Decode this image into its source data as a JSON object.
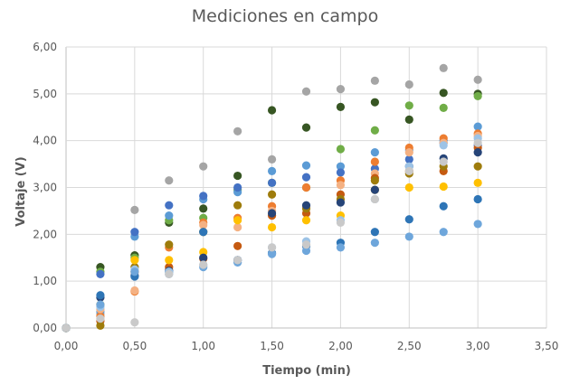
{
  "chart_data": {
    "type": "scatter",
    "title": "Mediciones en campo",
    "xlabel": "Tiempo (min)",
    "ylabel": "Voltaje (V)",
    "xlim": [
      0,
      3.5
    ],
    "ylim": [
      0,
      6
    ],
    "x_ticks": [
      "0,00",
      "0,50",
      "1,00",
      "1,50",
      "2,00",
      "2,50",
      "3,00",
      "3,50"
    ],
    "y_ticks": [
      "0,00",
      "1,00",
      "2,00",
      "3,00",
      "4,00",
      "5,00",
      "6,00"
    ],
    "grid": true,
    "legend": "none",
    "series": [
      {
        "color": "#a5a5a5",
        "points": [
          [
            0,
            0
          ],
          [
            0.25,
            0.3
          ],
          [
            0.5,
            2.52
          ],
          [
            0.75,
            3.15
          ],
          [
            1.0,
            3.45
          ],
          [
            1.25,
            4.2
          ],
          [
            1.5,
            3.6
          ],
          [
            1.75,
            5.05
          ],
          [
            2.0,
            5.1
          ],
          [
            2.25,
            5.28
          ],
          [
            2.5,
            5.2
          ],
          [
            2.75,
            5.55
          ],
          [
            3.0,
            5.3
          ]
        ]
      },
      {
        "color": "#375623",
        "points": [
          [
            0,
            0
          ],
          [
            0.25,
            1.3
          ],
          [
            0.5,
            1.55
          ],
          [
            0.75,
            2.25
          ],
          [
            1.0,
            2.55
          ],
          [
            1.25,
            3.25
          ],
          [
            1.5,
            4.65
          ],
          [
            1.75,
            4.28
          ],
          [
            2.0,
            4.72
          ],
          [
            2.25,
            4.82
          ],
          [
            2.5,
            4.45
          ],
          [
            2.75,
            5.02
          ],
          [
            3.0,
            5.0
          ]
        ]
      },
      {
        "color": "#70ad47",
        "points": [
          [
            0,
            0
          ],
          [
            0.25,
            1.2
          ],
          [
            0.5,
            1.5
          ],
          [
            0.75,
            2.3
          ],
          [
            1.0,
            2.35
          ],
          [
            1.25,
            2.95
          ],
          [
            1.5,
            3.1
          ],
          [
            1.75,
            3.0
          ],
          [
            2.0,
            3.82
          ],
          [
            2.25,
            4.22
          ],
          [
            2.5,
            4.75
          ],
          [
            2.75,
            4.7
          ],
          [
            3.0,
            4.95
          ]
        ]
      },
      {
        "color": "#5b9bd5",
        "points": [
          [
            0,
            0
          ],
          [
            0.25,
            0.35
          ],
          [
            0.5,
            1.95
          ],
          [
            0.75,
            2.4
          ],
          [
            1.0,
            2.75
          ],
          [
            1.25,
            2.9
          ],
          [
            1.5,
            3.35
          ],
          [
            1.75,
            3.47
          ],
          [
            2.0,
            3.45
          ],
          [
            2.25,
            3.75
          ],
          [
            2.5,
            3.8
          ],
          [
            2.75,
            4.0
          ],
          [
            3.0,
            4.3
          ]
        ]
      },
      {
        "color": "#4472c4",
        "points": [
          [
            0,
            0
          ],
          [
            0.25,
            1.15
          ],
          [
            0.5,
            2.05
          ],
          [
            0.75,
            2.62
          ],
          [
            1.0,
            2.82
          ],
          [
            1.25,
            3.0
          ],
          [
            1.5,
            3.1
          ],
          [
            1.75,
            3.22
          ],
          [
            2.0,
            3.32
          ],
          [
            2.25,
            3.4
          ],
          [
            2.5,
            3.6
          ],
          [
            2.75,
            3.95
          ],
          [
            3.0,
            3.9
          ]
        ]
      },
      {
        "color": "#ed7d31",
        "points": [
          [
            0,
            0
          ],
          [
            0.25,
            0.25
          ],
          [
            0.5,
            0.78
          ],
          [
            0.75,
            1.72
          ],
          [
            1.0,
            2.25
          ],
          [
            1.25,
            2.35
          ],
          [
            1.5,
            2.6
          ],
          [
            1.75,
            3.0
          ],
          [
            2.0,
            3.15
          ],
          [
            2.25,
            3.55
          ],
          [
            2.5,
            3.85
          ],
          [
            2.75,
            4.05
          ],
          [
            3.0,
            4.15
          ]
        ]
      },
      {
        "color": "#f4b183",
        "points": [
          [
            0,
            0
          ],
          [
            0.25,
            0.4
          ],
          [
            0.5,
            0.8
          ],
          [
            0.75,
            1.25
          ],
          [
            1.0,
            2.2
          ],
          [
            1.25,
            2.15
          ],
          [
            1.5,
            2.5
          ],
          [
            1.75,
            2.6
          ],
          [
            2.0,
            3.05
          ],
          [
            2.25,
            3.3
          ],
          [
            2.5,
            3.75
          ],
          [
            2.75,
            3.95
          ],
          [
            3.0,
            4.1
          ]
        ]
      },
      {
        "color": "#c55a11",
        "points": [
          [
            0,
            0
          ],
          [
            0.25,
            0.15
          ],
          [
            0.5,
            1.2
          ],
          [
            0.75,
            1.3
          ],
          [
            1.0,
            1.48
          ],
          [
            1.25,
            1.75
          ],
          [
            1.5,
            2.4
          ],
          [
            1.75,
            2.45
          ],
          [
            2.0,
            2.85
          ],
          [
            2.25,
            3.2
          ],
          [
            2.5,
            3.35
          ],
          [
            2.75,
            3.35
          ],
          [
            3.0,
            3.85
          ]
        ]
      },
      {
        "color": "#9e7c0c",
        "points": [
          [
            0,
            0
          ],
          [
            0.25,
            0.05
          ],
          [
            0.5,
            1.3
          ],
          [
            0.75,
            1.78
          ],
          [
            1.0,
            2.05
          ],
          [
            1.25,
            2.62
          ],
          [
            1.5,
            2.85
          ],
          [
            1.75,
            2.55
          ],
          [
            2.0,
            2.75
          ],
          [
            2.25,
            3.15
          ],
          [
            2.5,
            3.3
          ],
          [
            2.75,
            3.45
          ],
          [
            3.0,
            3.45
          ]
        ]
      },
      {
        "color": "#ffc000",
        "points": [
          [
            0,
            0
          ],
          [
            0.25,
            0.5
          ],
          [
            0.5,
            1.45
          ],
          [
            0.75,
            1.45
          ],
          [
            1.0,
            1.62
          ],
          [
            1.25,
            2.3
          ],
          [
            1.5,
            2.15
          ],
          [
            1.75,
            2.3
          ],
          [
            2.0,
            2.4
          ],
          [
            2.25,
            2.95
          ],
          [
            2.5,
            3.0
          ],
          [
            2.75,
            3.02
          ],
          [
            3.0,
            3.1
          ]
        ]
      },
      {
        "color": "#264478",
        "points": [
          [
            0,
            0
          ],
          [
            0.25,
            0.65
          ],
          [
            0.5,
            1.12
          ],
          [
            0.75,
            1.22
          ],
          [
            1.0,
            1.5
          ],
          [
            1.25,
            1.45
          ],
          [
            1.5,
            2.45
          ],
          [
            1.75,
            2.62
          ],
          [
            2.0,
            2.68
          ],
          [
            2.25,
            2.95
          ],
          [
            2.5,
            3.45
          ],
          [
            2.75,
            3.62
          ],
          [
            3.0,
            3.75
          ]
        ]
      },
      {
        "color": "#2e75b6",
        "points": [
          [
            0,
            0
          ],
          [
            0.25,
            0.7
          ],
          [
            0.5,
            1.1
          ],
          [
            0.75,
            1.2
          ],
          [
            1.0,
            2.05
          ],
          [
            1.25,
            1.45
          ],
          [
            1.5,
            1.6
          ],
          [
            1.75,
            1.75
          ],
          [
            2.0,
            1.82
          ],
          [
            2.25,
            2.05
          ],
          [
            2.5,
            2.32
          ],
          [
            2.75,
            2.6
          ],
          [
            3.0,
            2.75
          ]
        ]
      },
      {
        "color": "#9dc3e6",
        "points": [
          [
            0,
            0
          ],
          [
            0.25,
            0.45
          ],
          [
            0.5,
            1.25
          ],
          [
            0.75,
            1.2
          ],
          [
            1.0,
            1.35
          ],
          [
            1.25,
            1.4
          ],
          [
            1.5,
            1.72
          ],
          [
            1.75,
            1.85
          ],
          [
            2.0,
            2.3
          ],
          [
            2.25,
            2.75
          ],
          [
            2.5,
            3.45
          ],
          [
            2.75,
            3.9
          ],
          [
            3.0,
            4.05
          ]
        ]
      },
      {
        "color": "#6ea6db",
        "points": [
          [
            0,
            0
          ],
          [
            0.25,
            0.5
          ],
          [
            0.5,
            1.2
          ],
          [
            0.75,
            1.15
          ],
          [
            1.0,
            1.3
          ],
          [
            1.25,
            1.4
          ],
          [
            1.5,
            1.58
          ],
          [
            1.75,
            1.65
          ],
          [
            2.0,
            1.72
          ],
          [
            2.25,
            1.82
          ],
          [
            2.5,
            1.95
          ],
          [
            2.75,
            2.05
          ],
          [
            3.0,
            2.22
          ]
        ]
      },
      {
        "color": "#c9c9c9",
        "points": [
          [
            0,
            0
          ],
          [
            0.25,
            0.2
          ],
          [
            0.5,
            0.12
          ],
          [
            0.75,
            1.15
          ],
          [
            1.0,
            1.35
          ],
          [
            1.25,
            1.45
          ],
          [
            1.5,
            1.72
          ],
          [
            1.75,
            1.78
          ],
          [
            2.0,
            2.25
          ],
          [
            2.25,
            2.75
          ],
          [
            2.5,
            3.35
          ],
          [
            2.75,
            3.55
          ],
          [
            3.0,
            3.95
          ]
        ]
      }
    ]
  }
}
